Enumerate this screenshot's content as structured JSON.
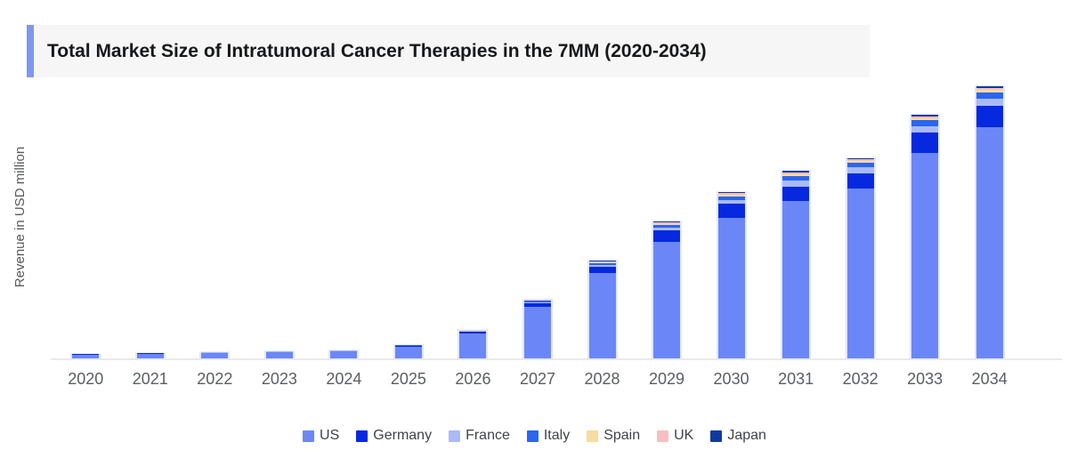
{
  "header": {
    "title": "Total Market Size of Intratumoral Cancer Therapies in the 7MM (2020-2034)"
  },
  "chart_data": {
    "type": "bar",
    "stacked": true,
    "title": "Total Market Size of Intratumoral Cancer Therapies in the 7MM (2020-2034)",
    "xlabel": "",
    "ylabel": "Revenue in USD million",
    "ylim": [
      0,
      3200
    ],
    "y_axis_ticks_visible": false,
    "grid": false,
    "legend_position": "bottom",
    "categories": [
      "2020",
      "2021",
      "2022",
      "2023",
      "2024",
      "2025",
      "2026",
      "2027",
      "2028",
      "2029",
      "2030",
      "2031",
      "2032",
      "2033",
      "2034"
    ],
    "series": [
      {
        "name": "US",
        "color": "#6B87F7",
        "values": [
          53,
          62,
          71,
          80,
          88,
          140,
          290,
          590,
          970,
          1320,
          1590,
          1780,
          1920,
          2320,
          2610
        ]
      },
      {
        "name": "Germany",
        "color": "#0629DF",
        "values": [
          3,
          4,
          4,
          5,
          6,
          10,
          20,
          40,
          70,
          130,
          160,
          160,
          170,
          230,
          240
        ]
      },
      {
        "name": "France",
        "color": "#A9BAF8",
        "values": [
          2,
          2,
          2,
          2,
          2,
          4,
          8,
          15,
          20,
          30,
          40,
          70,
          70,
          70,
          80
        ]
      },
      {
        "name": "Italy",
        "color": "#2B65F0",
        "values": [
          1,
          1,
          2,
          2,
          2,
          3,
          7,
          15,
          20,
          30,
          40,
          50,
          50,
          70,
          70
        ]
      },
      {
        "name": "Spain",
        "color": "#F8DC9E",
        "values": [
          1,
          1,
          1,
          1,
          1,
          1,
          2,
          4,
          10,
          15,
          20,
          20,
          20,
          20,
          30
        ]
      },
      {
        "name": "UK",
        "color": "#F9BFC0",
        "values": [
          0,
          0,
          0,
          0,
          1,
          1,
          2,
          3,
          10,
          15,
          20,
          20,
          20,
          20,
          20
        ]
      },
      {
        "name": "Japan",
        "color": "#0F3A9D",
        "values": [
          0,
          0,
          0,
          0,
          0,
          1,
          1,
          3,
          10,
          10,
          10,
          20,
          10,
          20,
          20
        ]
      }
    ],
    "totals_estimated": [
      60,
      70,
      80,
      90,
      100,
      160,
      330,
      670,
      1110,
      1550,
      1880,
      2120,
      2260,
      2750,
      3070
    ]
  },
  "colors": {
    "accent_bar": "#7E97EE",
    "title_background": "#F6F6F6",
    "title_text": "#16181A",
    "axis_line": "#E9E9E9",
    "axis_text": "#5A5E60",
    "y_label_text": "#565A5C",
    "legend_text": "#3F4447",
    "bar_edge": "#E0E6FB"
  }
}
